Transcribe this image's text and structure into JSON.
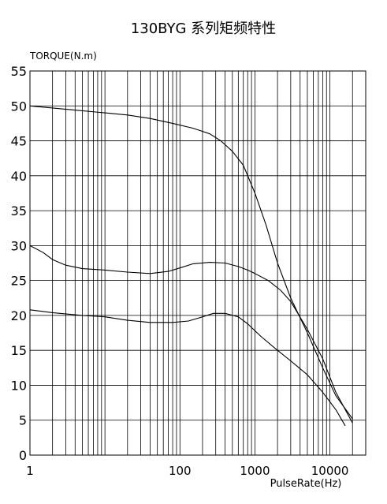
{
  "chart_data": {
    "type": "line",
    "title": "130BYG  系列矩频特性",
    "ylabel": "TORQUE(N.m)",
    "xlabel": "PulseRate(Hz)",
    "x_scale": "log",
    "xlim": [
      1,
      30000
    ],
    "ylim": [
      0,
      55
    ],
    "y_ticks": [
      0,
      5,
      10,
      15,
      20,
      25,
      30,
      35,
      40,
      45,
      50,
      55
    ],
    "y_tick_labels": [
      "0",
      "5",
      "10",
      "15",
      "20",
      "25",
      "30",
      "35",
      "40",
      "45",
      "50",
      "55"
    ],
    "x_ticks": [
      1,
      100,
      1000,
      10000
    ],
    "x_tick_labels": [
      "1",
      "100",
      "1000",
      "10000"
    ],
    "grid": true,
    "series": [
      {
        "values": [
          [
            1,
            50.0
          ],
          [
            2,
            49.7
          ],
          [
            4,
            49.4
          ],
          [
            10,
            49.0
          ],
          [
            20,
            48.7
          ],
          [
            40,
            48.2
          ],
          [
            80,
            47.5
          ],
          [
            150,
            46.8
          ],
          [
            250,
            46.0
          ],
          [
            350,
            45.0
          ],
          [
            500,
            43.5
          ],
          [
            700,
            41.5
          ],
          [
            1000,
            37.5
          ],
          [
            1400,
            33.0
          ],
          [
            2000,
            27.5
          ],
          [
            3000,
            22.5
          ],
          [
            5000,
            17.5
          ],
          [
            8000,
            12.5
          ],
          [
            12000,
            8.5
          ],
          [
            20000,
            5.2
          ]
        ]
      },
      {
        "values": [
          [
            1,
            30.0
          ],
          [
            1.5,
            29.0
          ],
          [
            2,
            28.0
          ],
          [
            3,
            27.2
          ],
          [
            5,
            26.7
          ],
          [
            10,
            26.5
          ],
          [
            20,
            26.2
          ],
          [
            40,
            26.0
          ],
          [
            70,
            26.3
          ],
          [
            100,
            26.8
          ],
          [
            150,
            27.4
          ],
          [
            250,
            27.6
          ],
          [
            400,
            27.5
          ],
          [
            600,
            27.0
          ],
          [
            800,
            26.5
          ],
          [
            1000,
            26.0
          ],
          [
            1500,
            25.0
          ],
          [
            2200,
            23.6
          ],
          [
            3000,
            22.0
          ],
          [
            5000,
            18.0
          ],
          [
            8000,
            13.8
          ],
          [
            12000,
            9.0
          ],
          [
            20000,
            4.6
          ]
        ]
      },
      {
        "values": [
          [
            1,
            20.8
          ],
          [
            2,
            20.4
          ],
          [
            5,
            20.0
          ],
          [
            10,
            19.8
          ],
          [
            20,
            19.3
          ],
          [
            40,
            19.0
          ],
          [
            80,
            19.0
          ],
          [
            130,
            19.2
          ],
          [
            200,
            19.8
          ],
          [
            280,
            20.3
          ],
          [
            400,
            20.3
          ],
          [
            600,
            19.8
          ],
          [
            800,
            18.8
          ],
          [
            1200,
            17.0
          ],
          [
            2000,
            15.0
          ],
          [
            3000,
            13.5
          ],
          [
            5000,
            11.5
          ],
          [
            8000,
            9.0
          ],
          [
            12000,
            6.5
          ],
          [
            16000,
            4.2
          ]
        ]
      }
    ]
  }
}
